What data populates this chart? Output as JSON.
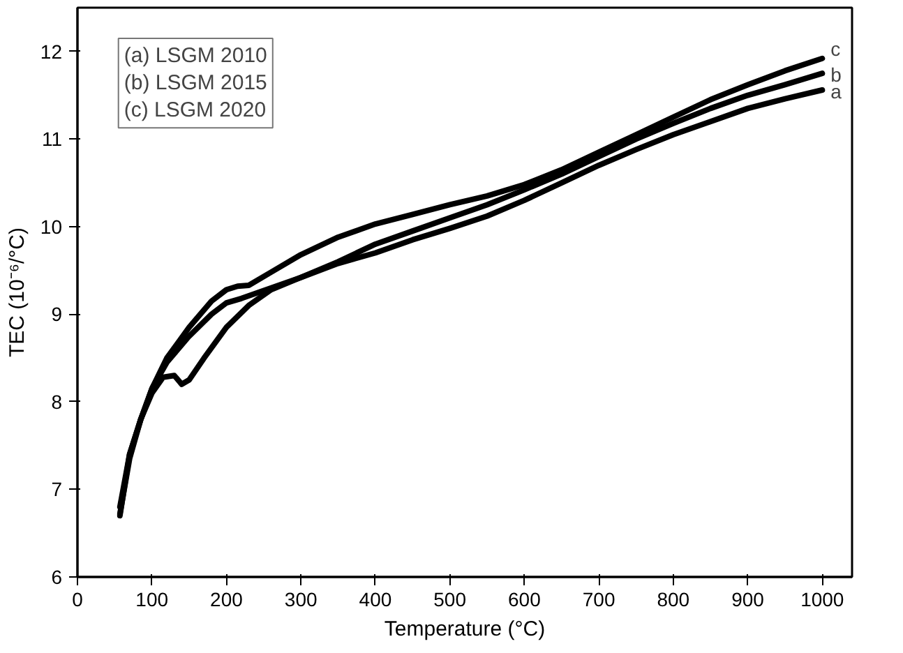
{
  "chart_data": {
    "type": "line",
    "xlabel": "Temperature (°C)",
    "ylabel": "TEC (10⁻⁶/°C)",
    "xlim": [
      0,
      1040
    ],
    "ylim": [
      6,
      12.5
    ],
    "xticks": [
      0,
      100,
      200,
      300,
      400,
      500,
      600,
      700,
      800,
      900,
      1000
    ],
    "yticks": [
      6,
      7,
      8,
      9,
      10,
      11,
      12
    ],
    "grid": false,
    "marker": "none",
    "line_style": "solid",
    "annotations": [
      "(a) LSGM 2010",
      "(b) LSGM 2015",
      "(c) LSGM 2020"
    ],
    "series": [
      {
        "name": "a",
        "color": "#000000",
        "x": [
          57,
          70,
          85,
          100,
          115,
          130,
          140,
          150,
          170,
          200,
          230,
          260,
          300,
          350,
          400,
          450,
          500,
          550,
          600,
          650,
          700,
          750,
          800,
          850,
          900,
          950,
          1000
        ],
        "values": [
          6.72,
          7.35,
          7.8,
          8.1,
          8.28,
          8.3,
          8.2,
          8.25,
          8.5,
          8.85,
          9.1,
          9.28,
          9.42,
          9.58,
          9.7,
          9.85,
          9.98,
          10.12,
          10.3,
          10.5,
          10.7,
          10.88,
          11.05,
          11.2,
          11.35,
          11.46,
          11.56
        ]
      },
      {
        "name": "b",
        "color": "#000000",
        "x": [
          57,
          70,
          85,
          100,
          120,
          150,
          180,
          200,
          220,
          250,
          300,
          350,
          400,
          450,
          500,
          550,
          600,
          650,
          700,
          750,
          800,
          850,
          900,
          950,
          1000
        ],
        "values": [
          6.8,
          7.4,
          7.8,
          8.15,
          8.45,
          8.75,
          9.0,
          9.13,
          9.18,
          9.27,
          9.42,
          9.6,
          9.8,
          9.95,
          10.1,
          10.25,
          10.42,
          10.6,
          10.8,
          11.0,
          11.18,
          11.35,
          11.5,
          11.62,
          11.75
        ]
      },
      {
        "name": "c",
        "color": "#000000",
        "x": [
          57,
          70,
          85,
          100,
          120,
          150,
          180,
          200,
          215,
          230,
          260,
          300,
          350,
          400,
          450,
          500,
          550,
          600,
          650,
          700,
          750,
          800,
          850,
          900,
          950,
          1000
        ],
        "values": [
          6.7,
          7.4,
          7.8,
          8.15,
          8.5,
          8.85,
          9.15,
          9.28,
          9.32,
          9.33,
          9.48,
          9.68,
          9.88,
          10.03,
          10.14,
          10.25,
          10.35,
          10.48,
          10.65,
          10.85,
          11.05,
          11.25,
          11.45,
          11.62,
          11.78,
          11.92
        ]
      }
    ]
  }
}
